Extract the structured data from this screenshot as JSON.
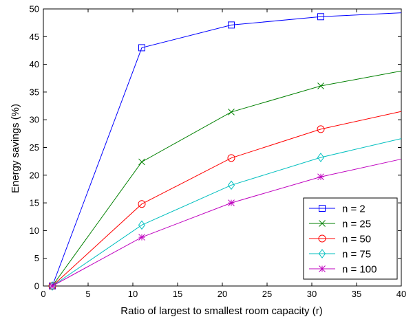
{
  "chart_data": {
    "type": "line",
    "title": "",
    "xlabel": "Ratio of largest to smallest room capacity (r)",
    "ylabel": "Energy savings (%)",
    "xlim": [
      0,
      40
    ],
    "ylim": [
      0,
      50
    ],
    "xticks": [
      0,
      5,
      10,
      15,
      20,
      25,
      30,
      35,
      40
    ],
    "yticks": [
      0,
      5,
      10,
      15,
      20,
      25,
      30,
      35,
      40,
      45,
      50
    ],
    "grid": false,
    "legend_position": "bottom-right",
    "series": [
      {
        "name": "n = 2",
        "color": "#0000ff",
        "marker": "square",
        "line_x": [
          1,
          11,
          21,
          31,
          40
        ],
        "line_y": [
          0,
          43.0,
          47.1,
          48.6,
          49.3
        ],
        "marker_x": [
          1,
          11,
          21,
          31
        ],
        "marker_y": [
          0,
          43.0,
          47.1,
          48.6
        ]
      },
      {
        "name": "n = 25",
        "color": "#008000",
        "marker": "x",
        "line_x": [
          1,
          11,
          21,
          31,
          40
        ],
        "line_y": [
          0,
          22.4,
          31.4,
          36.1,
          38.8
        ],
        "marker_x": [
          1,
          11,
          21,
          31
        ],
        "marker_y": [
          0,
          22.4,
          31.4,
          36.1
        ]
      },
      {
        "name": "n = 50",
        "color": "#ff0000",
        "marker": "circle",
        "line_x": [
          1,
          11,
          21,
          31,
          40
        ],
        "line_y": [
          0,
          14.8,
          23.1,
          28.3,
          31.5
        ],
        "marker_x": [
          1,
          11,
          21,
          31
        ],
        "marker_y": [
          0,
          14.8,
          23.1,
          28.3
        ]
      },
      {
        "name": "n = 75",
        "color": "#00bfbf",
        "marker": "diamond",
        "line_x": [
          1,
          11,
          21,
          31,
          40
        ],
        "line_y": [
          0,
          11.0,
          18.2,
          23.2,
          26.6
        ],
        "marker_x": [
          1,
          11,
          21,
          31
        ],
        "marker_y": [
          0,
          11.0,
          18.2,
          23.2
        ]
      },
      {
        "name": "n = 100",
        "color": "#bf00bf",
        "marker": "asterisk",
        "line_x": [
          1,
          11,
          21,
          31,
          40
        ],
        "line_y": [
          0,
          8.8,
          15.0,
          19.7,
          22.9
        ],
        "marker_x": [
          1,
          11,
          21,
          31
        ],
        "marker_y": [
          0,
          8.8,
          15.0,
          19.7
        ]
      }
    ]
  }
}
